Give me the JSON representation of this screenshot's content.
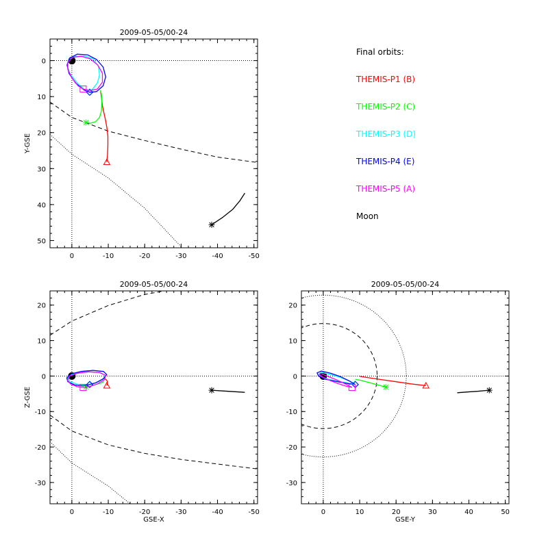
{
  "chart_data": [
    {
      "type": "line",
      "panel": "xy",
      "title": "2009-05-05/00-24",
      "xlabel": "",
      "ylabel": "Y-GSE",
      "xlim": [
        6,
        -51
      ],
      "ylim": [
        52,
        -6
      ],
      "xticks": [
        0,
        -10,
        -20,
        -30,
        -40,
        -50
      ],
      "yticks": [
        0,
        10,
        20,
        30,
        40,
        50
      ],
      "grid": false,
      "reference_lines": [
        {
          "axis": "x",
          "value": 0,
          "style": "dotted"
        },
        {
          "axis": "y",
          "value": 0,
          "style": "dotted"
        }
      ],
      "boundaries": [
        {
          "name": "",
          "style": "dashed",
          "x": [
            6,
            0,
            -10,
            -20,
            -30,
            -40,
            -51
          ],
          "y": [
            11.5,
            15.8,
            19.6,
            22.2,
            24.6,
            26.8,
            28.3
          ]
        },
        {
          "name": "",
          "style": "dotted",
          "x": [
            6,
            0,
            -10,
            -20,
            -30
          ],
          "y": [
            20.5,
            26,
            32.6,
            41,
            51.7
          ]
        }
      ],
      "earth": {
        "x": 0,
        "y": 0
      },
      "series": [
        {
          "name": "THEMIS-P1 (B)",
          "color": "#ff0000",
          "x": [
            -9.6,
            -9.8,
            -9.9,
            -9.9,
            -9.6,
            -9.2,
            -8.8,
            -8.4,
            -8.1,
            -7.9
          ],
          "y": [
            28.2,
            26,
            23.5,
            21,
            18.5,
            16.3,
            14.5,
            12.5,
            10.2,
            8.5
          ],
          "end_marker": "triangle"
        },
        {
          "name": "THEMIS-P2 (C)",
          "color": "#00ff00",
          "x": [
            -3.9,
            -5,
            -6.5,
            -7.6,
            -8.1,
            -8.2,
            -8.2,
            -8.1,
            -7.8
          ],
          "y": [
            17.2,
            17.4,
            17,
            15.8,
            14,
            12.2,
            10.8,
            9.2,
            8.2
          ],
          "end_marker": "asterisk"
        },
        {
          "name": "THEMIS-P3 (D)",
          "color": "#00ffff",
          "x": [
            -4.9,
            -3.8,
            -1.5,
            0.5,
            1.4,
            0.8,
            -1,
            -3.5,
            -5.8,
            -7.3,
            -7.6,
            -7,
            -5.6,
            -4.9
          ],
          "y": [
            8.7,
            8.3,
            6.3,
            3.6,
            1.3,
            -0.5,
            -1.2,
            -1.3,
            -0.5,
            1.6,
            4,
            6.2,
            8,
            8.7
          ],
          "end_marker": "diamond"
        },
        {
          "name": "THEMIS-P4 (E)",
          "color": "#0000ff",
          "x": [
            -4.9,
            -3.4,
            -1,
            0.8,
            1.3,
            0.6,
            -1.5,
            -4.3,
            -6.8,
            -8.6,
            -9.3,
            -8.6,
            -6.8,
            -4.9
          ],
          "y": [
            8.8,
            8.2,
            6.2,
            3.5,
            1.2,
            -0.7,
            -1.8,
            -1.6,
            -0.3,
            1.8,
            4.5,
            7,
            8.6,
            8.8
          ],
          "end_marker": "diamond"
        },
        {
          "name": "THEMIS-P5 (A)",
          "color": "#ff00ff",
          "x": [
            -3.1,
            -1.7,
            0,
            1.1,
            1.1,
            -0.2,
            -2.5,
            -5,
            -7.1,
            -8.4,
            -8.4,
            -7,
            -5,
            -3.1
          ],
          "y": [
            7.9,
            7,
            4.8,
            2.5,
            0.5,
            -0.9,
            -1.2,
            -0.5,
            1.2,
            3.5,
            6,
            7.9,
            8.3,
            7.9
          ],
          "end_marker": "square"
        },
        {
          "name": "Moon",
          "color": "#000000",
          "x": [
            -38.4,
            -41.5,
            -44.2,
            -46.1,
            -47.5
          ],
          "y": [
            45.6,
            43.5,
            41.3,
            39,
            36.8
          ],
          "end_marker": "asterisk"
        }
      ]
    },
    {
      "type": "line",
      "panel": "xz",
      "title": "2009-05-05/00-24",
      "xlabel": "GSE-X",
      "ylabel": "Z-GSE",
      "xlim": [
        6,
        -51
      ],
      "ylim": [
        -36,
        24
      ],
      "xticks": [
        0,
        -10,
        -20,
        -30,
        -40,
        -50
      ],
      "yticks": [
        20,
        10,
        0,
        -10,
        -20,
        -30
      ],
      "grid": false,
      "reference_lines": [
        {
          "axis": "x",
          "value": 0,
          "style": "dotted"
        },
        {
          "axis": "y",
          "value": 0,
          "style": "dotted"
        }
      ],
      "boundaries": [
        {
          "name": "",
          "style": "dashed",
          "x": [
            6,
            0,
            -10,
            -20,
            -25.5
          ],
          "y": [
            11.5,
            15.5,
            19.9,
            23,
            24
          ]
        },
        {
          "name": "",
          "style": "dashed",
          "x": [
            6,
            0,
            -10,
            -20,
            -30,
            -40,
            -51
          ],
          "y": [
            -11,
            -15.5,
            -19.4,
            -21.8,
            -23.5,
            -24.8,
            -26.2
          ]
        },
        {
          "name": "",
          "style": "dotted",
          "x": [
            6,
            0,
            -10,
            -16
          ],
          "y": [
            -18.5,
            -24.5,
            -31,
            -36
          ]
        }
      ],
      "earth": {
        "x": 0,
        "y": 0
      },
      "series": [
        {
          "name": "THEMIS-P1 (B)",
          "color": "#ff0000",
          "x": [
            -9.6,
            -9.8,
            -9.7,
            -9.4,
            -9.1,
            -8.7
          ],
          "y": [
            -2.7,
            -2,
            -1.4,
            -1,
            -0.8,
            -0.6
          ],
          "end_marker": "triangle"
        },
        {
          "name": "THEMIS-P2 (C)",
          "color": "#00ff00",
          "x": [
            -3.9,
            -5.5,
            -7,
            -8.2,
            -8.8
          ],
          "y": [
            -3.1,
            -2.7,
            -2.3,
            -1.9,
            -1.5
          ],
          "end_marker": "asterisk"
        },
        {
          "name": "THEMIS-P3 (D)",
          "color": "#00ffff",
          "x": [
            -4.9,
            -3.5,
            -1.5,
            0.5,
            1.2,
            0.5,
            -2,
            -5,
            -7.8,
            -9.2,
            -8.5,
            -6.5,
            -4.9
          ],
          "y": [
            -2.3,
            -2.6,
            -2.3,
            -1.6,
            -0.6,
            0.3,
            0.9,
            1.2,
            1,
            0.2,
            -0.9,
            -1.9,
            -2.3
          ],
          "end_marker": "diamond"
        },
        {
          "name": "THEMIS-P4 (E)",
          "color": "#0000ff",
          "x": [
            -4.9,
            -3,
            -0.8,
            1.1,
            1.4,
            0.2,
            -2.5,
            -5.8,
            -8.7,
            -9.6,
            -8.6,
            -6.6,
            -4.9
          ],
          "y": [
            -2.4,
            -2.8,
            -2.5,
            -1.6,
            -0.5,
            0.6,
            1.3,
            1.6,
            1.3,
            0.4,
            -0.8,
            -1.9,
            -2.4
          ],
          "end_marker": "diamond"
        },
        {
          "name": "THEMIS-P5 (A)",
          "color": "#ff00ff",
          "x": [
            -3.1,
            -1.5,
            0.3,
            1.2,
            0.6,
            -1.5,
            -4.5,
            -7.5,
            -9.3,
            -9,
            -7,
            -4.8,
            -3.1
          ],
          "y": [
            -3.2,
            -3,
            -2.3,
            -1.2,
            0,
            0.8,
            1.2,
            1,
            0.2,
            -1,
            -2.2,
            -3,
            -3.2
          ],
          "end_marker": "square"
        },
        {
          "name": "Moon",
          "color": "#000000",
          "x": [
            -38.4,
            -41.5,
            -44.5,
            -47.5
          ],
          "y": [
            -4,
            -4.2,
            -4.4,
            -4.6
          ],
          "end_marker": "asterisk"
        }
      ]
    },
    {
      "type": "line",
      "panel": "yz",
      "title": "2009-05-05/00-24",
      "xlabel": "GSE-Y",
      "ylabel": "",
      "xlim": [
        -6,
        51
      ],
      "ylim": [
        -36,
        24
      ],
      "xticks": [
        0,
        10,
        20,
        30,
        40,
        50
      ],
      "yticks": [
        20,
        10,
        0,
        -10,
        -20,
        -30
      ],
      "grid": false,
      "reference_lines": [
        {
          "axis": "x",
          "value": 0,
          "style": "dotted"
        },
        {
          "axis": "y",
          "value": 0,
          "style": "dotted"
        }
      ],
      "circles": [
        {
          "name": "",
          "style": "dashed",
          "radius": 14.8
        },
        {
          "name": "",
          "style": "dotted",
          "radius": 22.8
        }
      ],
      "earth": {
        "x": 0,
        "y": 0
      },
      "series": [
        {
          "name": "THEMIS-P1 (B)",
          "color": "#ff0000",
          "x": [
            28.2,
            24,
            20,
            16,
            12,
            10
          ],
          "y": [
            -2.7,
            -2.2,
            -1.6,
            -1,
            -0.4,
            -0.1
          ],
          "end_marker": "triangle"
        },
        {
          "name": "THEMIS-P2 (C)",
          "color": "#00ff00",
          "x": [
            17.2,
            15,
            12.5,
            10.3,
            8.8
          ],
          "y": [
            -3.1,
            -2.5,
            -1.8,
            -1.2,
            -0.9
          ],
          "end_marker": "asterisk"
        },
        {
          "name": "THEMIS-P3 (D)",
          "color": "#00ffff",
          "x": [
            8.7,
            7,
            4.5,
            1.8,
            -0.5,
            -1.2,
            -0.6,
            1.5,
            4.8,
            7.6,
            8.7
          ],
          "y": [
            -2.3,
            -1.3,
            -0.3,
            0.5,
            1,
            0.6,
            -0.2,
            -0.9,
            -1.6,
            -2.1,
            -2.3
          ],
          "end_marker": "diamond"
        },
        {
          "name": "THEMIS-P4 (E)",
          "color": "#0000ff",
          "x": [
            8.8,
            7.2,
            4.8,
            2,
            -0.5,
            -1.7,
            -1.3,
            0.6,
            4,
            7.2,
            8.8
          ],
          "y": [
            -2.4,
            -1.4,
            -0.2,
            0.8,
            1.4,
            0.9,
            0,
            -0.9,
            -1.6,
            -2.2,
            -2.4
          ],
          "end_marker": "diamond"
        },
        {
          "name": "THEMIS-P5 (A)",
          "color": "#ff00ff",
          "x": [
            7.9,
            6,
            3.5,
            1,
            -0.8,
            -1,
            0.5,
            3.2,
            6,
            7.9
          ],
          "y": [
            -3.2,
            -2.2,
            -1,
            0,
            0.8,
            0.3,
            -0.7,
            -1.8,
            -2.8,
            -3.2
          ],
          "end_marker": "square"
        },
        {
          "name": "Moon",
          "color": "#000000",
          "x": [
            45.6,
            42.3,
            39.5,
            36.8
          ],
          "y": [
            -4,
            -4.3,
            -4.5,
            -4.7
          ],
          "end_marker": "asterisk"
        }
      ]
    }
  ],
  "legend": {
    "title": "Final orbits:",
    "entries": [
      {
        "label": "THEMIS-P1 (B)",
        "color": "#ff0000"
      },
      {
        "label": "THEMIS-P2 (C)",
        "color": "#00ff00"
      },
      {
        "label": "THEMIS-P3 (D)",
        "color": "#00ffff"
      },
      {
        "label": "THEMIS-P4 (E)",
        "color": "#0000ff"
      },
      {
        "label": "THEMIS-P5 (A)",
        "color": "#ff00ff"
      },
      {
        "label": "Moon",
        "color": "#000000"
      }
    ]
  }
}
